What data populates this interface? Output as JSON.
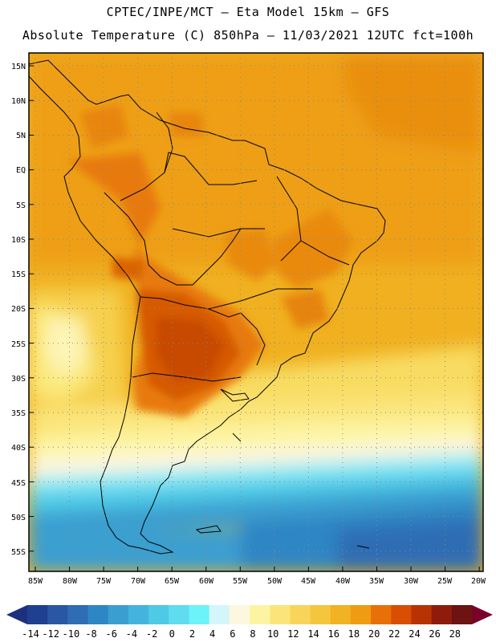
{
  "header": {
    "line1": "CPTEC/INPE/MCT –  Eta Model 15km – GFS",
    "line2": "Absolute Temperature (C) 850hPa – 11/03/2021 12UTC fct=100h"
  },
  "map": {
    "lat_labels": [
      "15N",
      "10N",
      "5N",
      "EQ",
      "5S",
      "10S",
      "15S",
      "20S",
      "25S",
      "30S",
      "35S",
      "40S",
      "45S",
      "50S",
      "55S"
    ],
    "lon_labels": [
      "85W",
      "80W",
      "75W",
      "70W",
      "65W",
      "60W",
      "55W",
      "50W",
      "45W",
      "40W",
      "35W",
      "30W",
      "25W",
      "20W"
    ]
  },
  "colorbar": {
    "labels": [
      "-14",
      "-12",
      "-10",
      "-8",
      "-6",
      "-4",
      "-2",
      "0",
      "2",
      "4",
      "6",
      "8",
      "10",
      "12",
      "14",
      "16",
      "18",
      "20",
      "22",
      "24",
      "26",
      "28"
    ],
    "colors": [
      "#1f3f8f",
      "#2a57a3",
      "#2e6db4",
      "#2f86c4",
      "#3a9fd0",
      "#45b4dc",
      "#4ec9e6",
      "#5fdcef",
      "#6cf2f9",
      "#d4f6fb",
      "#fdf7df",
      "#fdf4a2",
      "#fbe57a",
      "#f8d55a",
      "#f4c63d",
      "#f1b223",
      "#ee9c12",
      "#e87008",
      "#d94e04",
      "#b83304",
      "#8e1c0c",
      "#6d1311"
    ],
    "low_color": "#1f2f80",
    "high_color": "#7a0029"
  }
}
